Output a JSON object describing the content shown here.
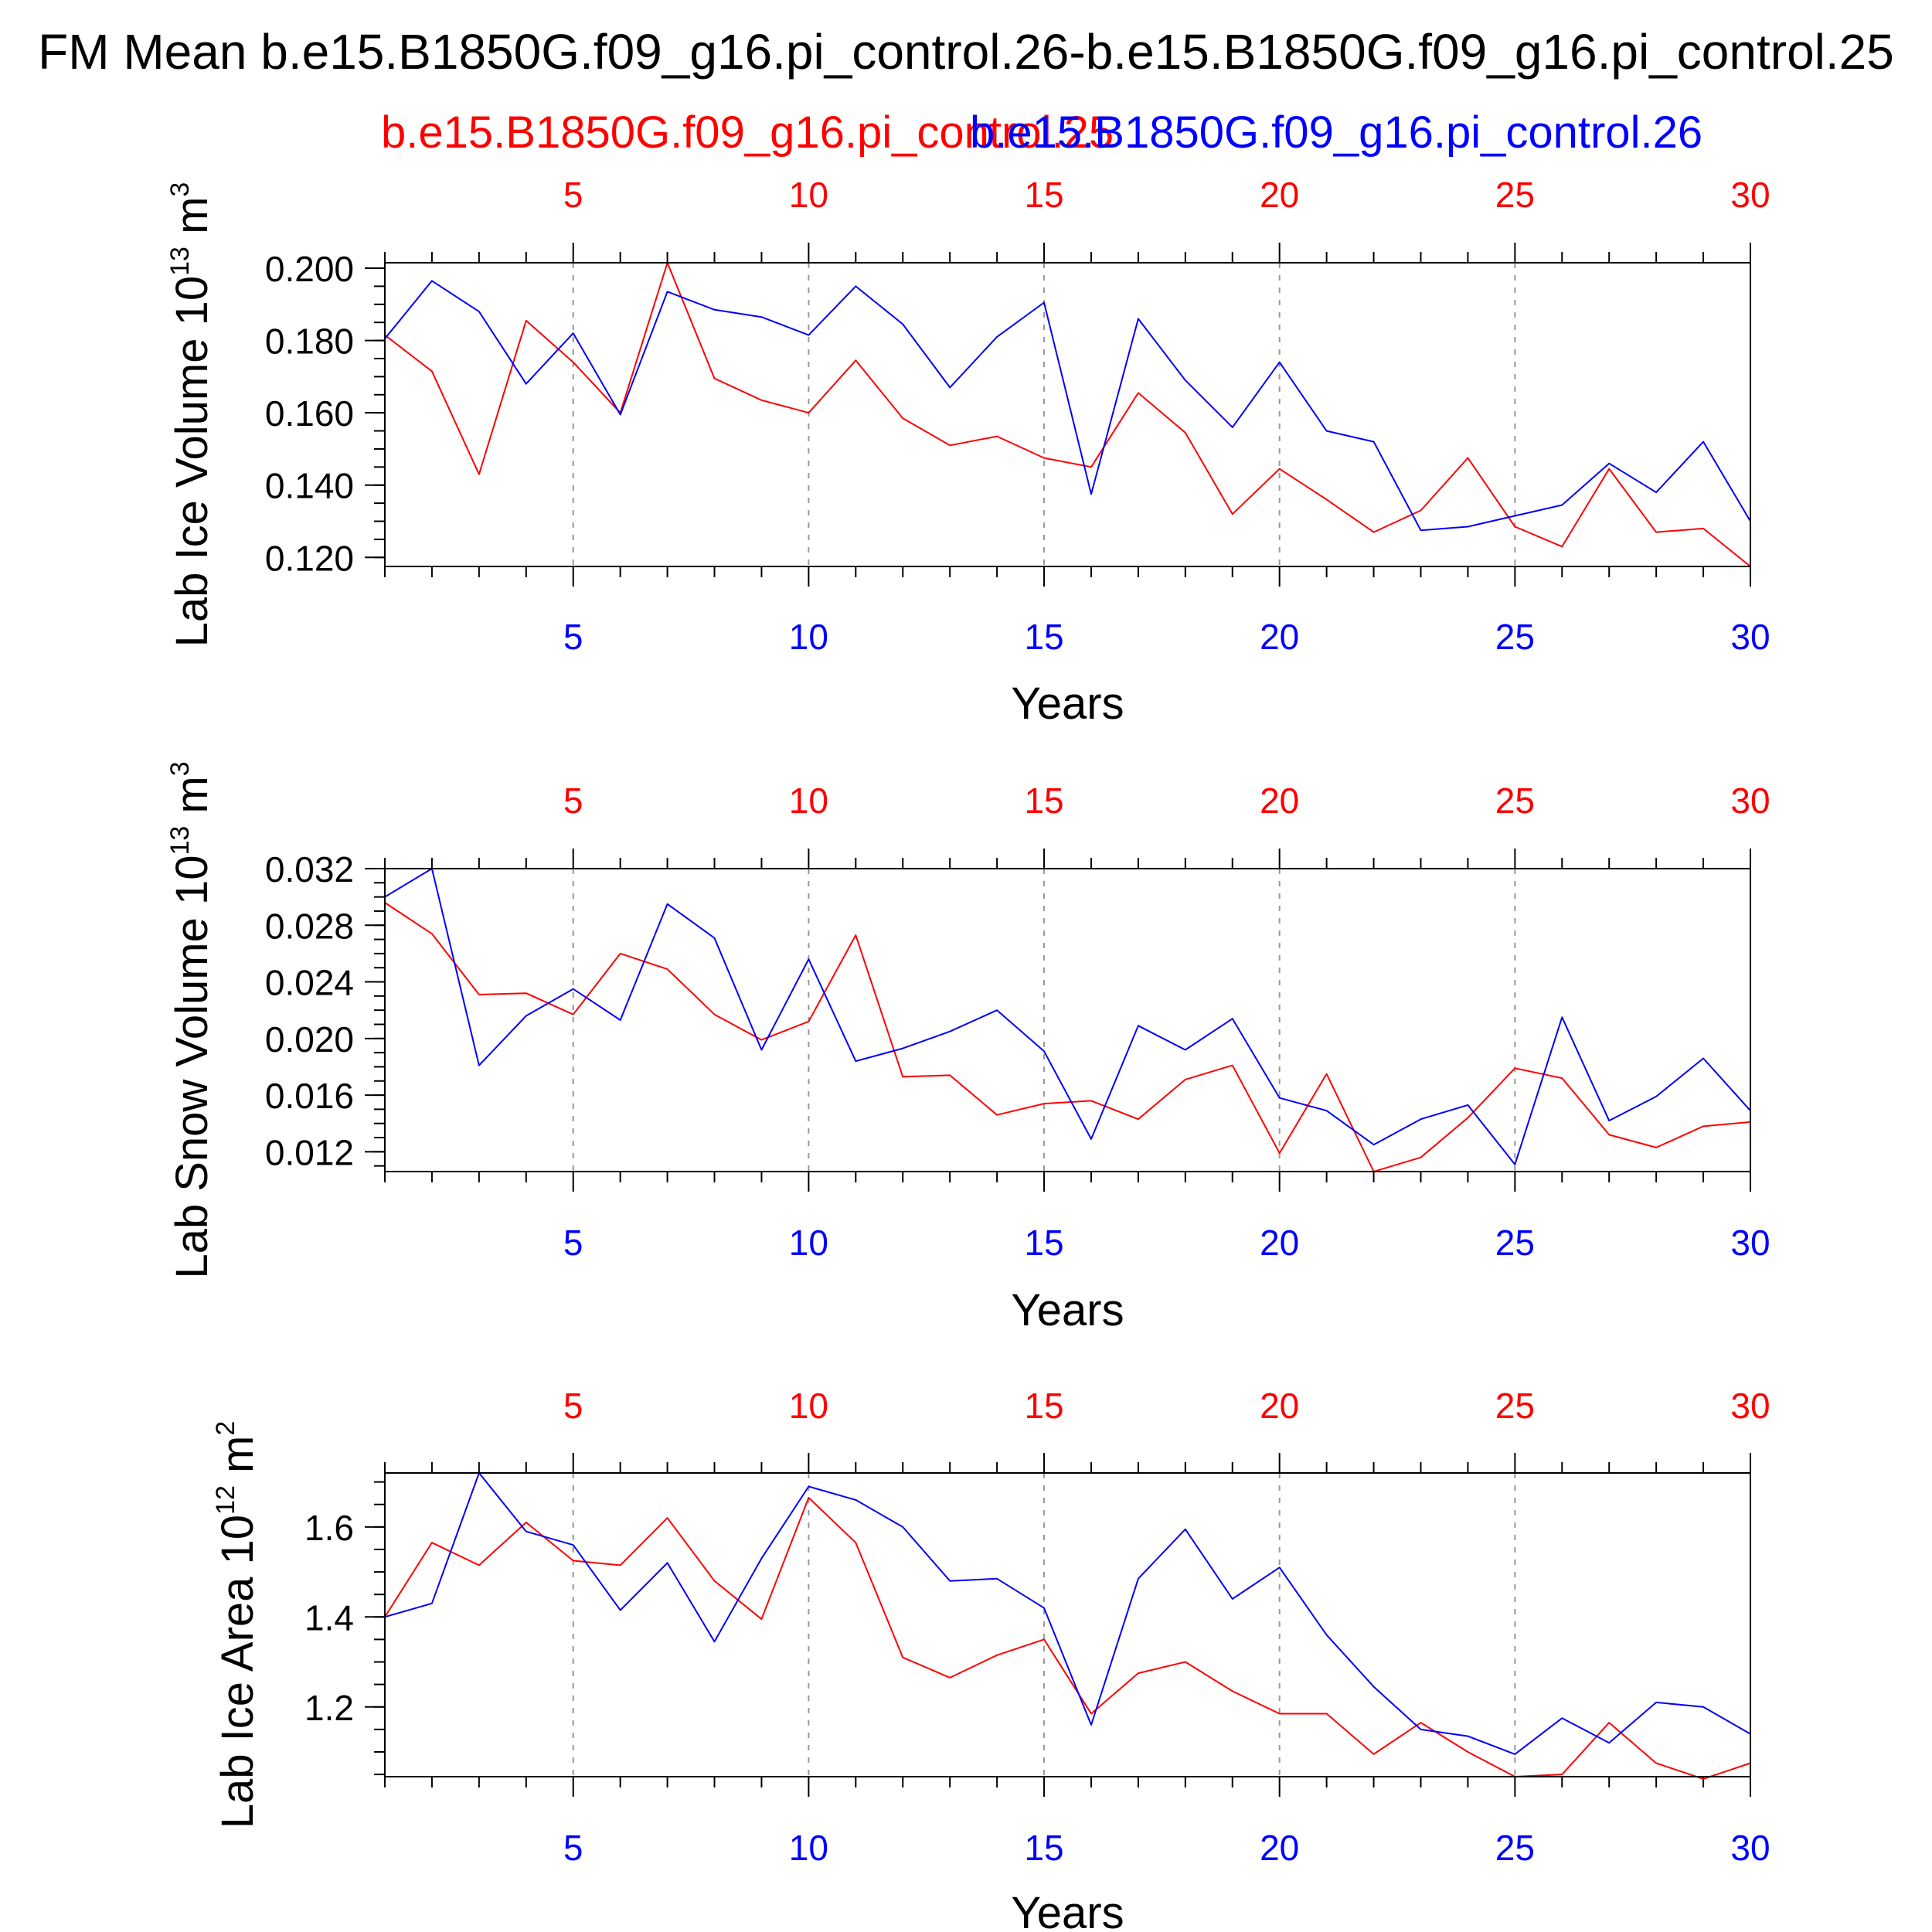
{
  "figure": {
    "title": "FM Mean b.e15.B1850G.f09_g16.pi_control.26-b.e15.B1850G.f09_g16.pi_control.25",
    "run_red": "b.e15.B1850G.f09_g16.pi_control.25",
    "run_blue": "b.e15.B1850G.f09_g16.pi_control.26",
    "colors": {
      "red": "#ff0000",
      "blue": "#0000ff",
      "axis": "#000000",
      "grid": "#999999"
    }
  },
  "chart_data": [
    {
      "type": "line",
      "title": "",
      "ylabel_main": "Lab Ice Volume 10",
      "ylabel_exp": "13",
      "ylabel_unit": " m",
      "ylabel_unit_exp": "3",
      "xlabel": "Years",
      "xlim": [
        1,
        30
      ],
      "ylim": [
        0.1175,
        0.2015
      ],
      "x_ticks": [
        5,
        10,
        15,
        20,
        25,
        30
      ],
      "x_tick_labels": [
        "5",
        "10",
        "15",
        "20",
        "25",
        "30"
      ],
      "y_ticks": [
        0.12,
        0.14,
        0.16,
        0.18,
        0.2
      ],
      "y_tick_labels": [
        "0.120",
        "0.140",
        "0.160",
        "0.180",
        "0.200"
      ],
      "y_minor_step": 0.005,
      "x": [
        1,
        2,
        3,
        4,
        5,
        6,
        7,
        8,
        9,
        10,
        11,
        12,
        13,
        14,
        15,
        16,
        17,
        18,
        19,
        20,
        21,
        22,
        23,
        24,
        25,
        26,
        27,
        28,
        29,
        30
      ],
      "series": [
        {
          "name": "b.e15.B1850G.f09_g16.pi_control.25",
          "color": "#ff0000",
          "values": [
            0.1815,
            0.1715,
            0.143,
            0.1855,
            0.174,
            0.16,
            0.2015,
            0.1695,
            0.1635,
            0.16,
            0.1745,
            0.1585,
            0.151,
            0.1535,
            0.1475,
            0.145,
            0.1655,
            0.1545,
            0.132,
            0.1445,
            0.136,
            0.127,
            0.133,
            0.1475,
            0.1285,
            0.123,
            0.1445,
            0.127,
            0.128,
            0.1175
          ]
        },
        {
          "name": "b.e15.B1850G.f09_g16.pi_control.26",
          "color": "#0000ff",
          "values": [
            0.1805,
            0.1965,
            0.188,
            0.168,
            0.182,
            0.1595,
            0.1935,
            0.1885,
            0.1865,
            0.1815,
            0.195,
            0.1845,
            0.167,
            0.181,
            0.1905,
            0.1375,
            0.186,
            0.169,
            0.156,
            0.174,
            0.155,
            0.152,
            0.1275,
            0.1285,
            0.1315,
            0.1345,
            0.146,
            0.138,
            0.152,
            0.13
          ]
        }
      ]
    },
    {
      "type": "line",
      "title": "",
      "ylabel_main": "Lab Snow Volume 10",
      "ylabel_exp": "13",
      "ylabel_unit": " m",
      "ylabel_unit_exp": "3",
      "xlabel": "Years",
      "xlim": [
        1,
        30
      ],
      "ylim": [
        0.0106,
        0.032
      ],
      "x_ticks": [
        5,
        10,
        15,
        20,
        25,
        30
      ],
      "x_tick_labels": [
        "5",
        "10",
        "15",
        "20",
        "25",
        "30"
      ],
      "y_ticks": [
        0.012,
        0.016,
        0.02,
        0.024,
        0.028,
        0.032
      ],
      "y_tick_labels": [
        "0.012",
        "0.016",
        "0.020",
        "0.024",
        "0.028",
        "0.032"
      ],
      "y_minor_step": 0.001,
      "x": [
        1,
        2,
        3,
        4,
        5,
        6,
        7,
        8,
        9,
        10,
        11,
        12,
        13,
        14,
        15,
        16,
        17,
        18,
        19,
        20,
        21,
        22,
        23,
        24,
        25,
        26,
        27,
        28,
        29,
        30
      ],
      "series": [
        {
          "name": "b.e15.B1850G.f09_g16.pi_control.25",
          "color": "#ff0000",
          "values": [
            0.0296,
            0.0274,
            0.0231,
            0.0232,
            0.0217,
            0.026,
            0.0249,
            0.0217,
            0.0199,
            0.0212,
            0.0273,
            0.0173,
            0.0174,
            0.0146,
            0.0154,
            0.0156,
            0.0143,
            0.0171,
            0.0181,
            0.0119,
            0.0175,
            0.0106,
            0.0116,
            0.0144,
            0.0179,
            0.0172,
            0.0132,
            0.0123,
            0.0138,
            0.0141
          ]
        },
        {
          "name": "b.e15.B1850G.f09_g16.pi_control.26",
          "color": "#0000ff",
          "values": [
            0.03,
            0.032,
            0.0181,
            0.0216,
            0.0235,
            0.0213,
            0.0295,
            0.0271,
            0.0192,
            0.0256,
            0.0184,
            0.0193,
            0.0205,
            0.022,
            0.0191,
            0.0129,
            0.0209,
            0.0192,
            0.0214,
            0.0158,
            0.0149,
            0.0125,
            0.0143,
            0.0153,
            0.0111,
            0.0215,
            0.0142,
            0.0159,
            0.0186,
            0.0149
          ]
        }
      ]
    },
    {
      "type": "line",
      "title": "",
      "ylabel_main": "Lab Ice Area 10",
      "ylabel_exp": "12",
      "ylabel_unit": " m",
      "ylabel_unit_exp": "2",
      "xlabel": "Years",
      "xlim": [
        1,
        30
      ],
      "ylim": [
        1.045,
        1.72
      ],
      "x_ticks": [
        5,
        10,
        15,
        20,
        25,
        30
      ],
      "x_tick_labels": [
        "5",
        "10",
        "15",
        "20",
        "25",
        "30"
      ],
      "y_ticks": [
        1.2,
        1.4,
        1.6
      ],
      "y_tick_labels": [
        "1.2",
        "1.4",
        "1.6"
      ],
      "y_minor_step": 0.05,
      "x": [
        1,
        2,
        3,
        4,
        5,
        6,
        7,
        8,
        9,
        10,
        11,
        12,
        13,
        14,
        15,
        16,
        17,
        18,
        19,
        20,
        21,
        22,
        23,
        24,
        25,
        26,
        27,
        28,
        29,
        30
      ],
      "series": [
        {
          "name": "b.e15.B1850G.f09_g16.pi_control.25",
          "color": "#ff0000",
          "values": [
            1.4,
            1.565,
            1.515,
            1.61,
            1.525,
            1.515,
            1.62,
            1.48,
            1.395,
            1.665,
            1.565,
            1.31,
            1.265,
            1.315,
            1.35,
            1.185,
            1.275,
            1.3,
            1.235,
            1.185,
            1.185,
            1.095,
            1.165,
            1.1,
            1.045,
            1.05,
            1.165,
            1.075,
            1.04,
            1.075
          ]
        },
        {
          "name": "b.e15.B1850G.f09_g16.pi_control.26",
          "color": "#0000ff",
          "values": [
            1.4,
            1.43,
            1.72,
            1.59,
            1.56,
            1.415,
            1.52,
            1.345,
            1.53,
            1.69,
            1.66,
            1.6,
            1.48,
            1.485,
            1.42,
            1.16,
            1.485,
            1.595,
            1.44,
            1.51,
            1.36,
            1.245,
            1.15,
            1.135,
            1.095,
            1.175,
            1.12,
            1.21,
            1.2,
            1.14
          ]
        }
      ]
    }
  ]
}
